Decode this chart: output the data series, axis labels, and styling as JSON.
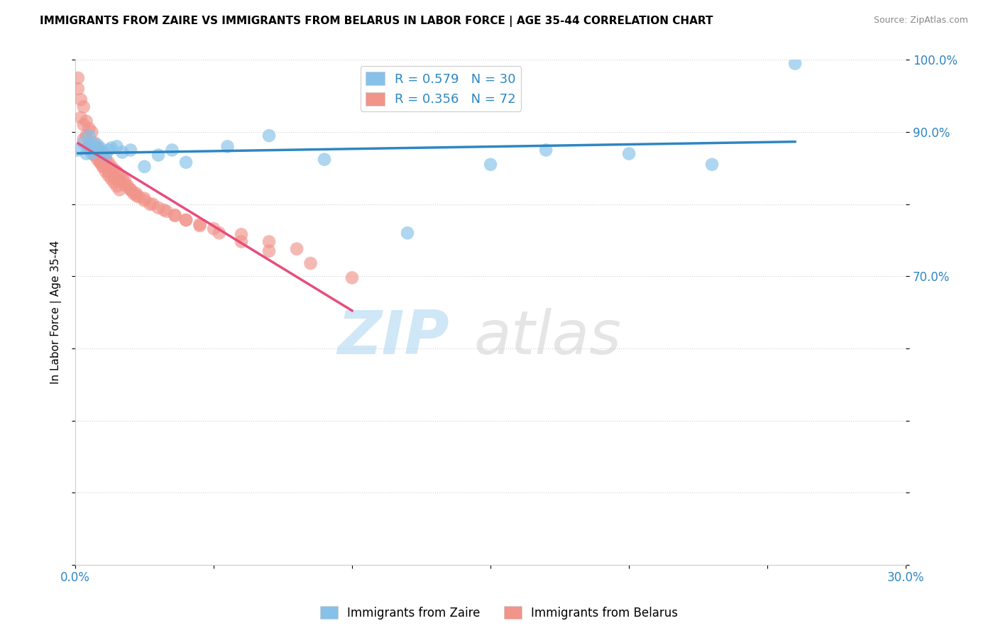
{
  "title": "IMMIGRANTS FROM ZAIRE VS IMMIGRANTS FROM BELARUS IN LABOR FORCE | AGE 35-44 CORRELATION CHART",
  "source": "Source: ZipAtlas.com",
  "ylabel": "In Labor Force | Age 35-44",
  "xlim": [
    0.0,
    0.3
  ],
  "ylim": [
    0.3,
    1.0
  ],
  "xtick_positions": [
    0.0,
    0.05,
    0.1,
    0.15,
    0.2,
    0.25,
    0.3
  ],
  "xticklabels": [
    "0.0%",
    "",
    "",
    "",
    "",
    "",
    "30.0%"
  ],
  "ytick_positions": [
    0.3,
    0.4,
    0.5,
    0.6,
    0.7,
    0.8,
    0.9,
    1.0
  ],
  "yticklabels": [
    "",
    "",
    "",
    "",
    "70.0%",
    "",
    "90.0%",
    "100.0%"
  ],
  "zaire_R": 0.579,
  "zaire_N": 30,
  "belarus_R": 0.356,
  "belarus_N": 72,
  "zaire_color": "#85c1e9",
  "belarus_color": "#f1948a",
  "zaire_line_color": "#2e86c1",
  "belarus_line_color": "#e74c7c",
  "watermark_zip": "ZIP",
  "watermark_atlas": "atlas",
  "legend_label_zaire": "Immigrants from Zaire",
  "legend_label_belarus": "Immigrants from Belarus",
  "zaire_x": [
    0.001,
    0.003,
    0.004,
    0.005,
    0.005,
    0.006,
    0.006,
    0.007,
    0.008,
    0.009,
    0.01,
    0.011,
    0.012,
    0.013,
    0.015,
    0.017,
    0.02,
    0.025,
    0.03,
    0.035,
    0.04,
    0.055,
    0.07,
    0.09,
    0.12,
    0.15,
    0.17,
    0.2,
    0.23,
    0.26
  ],
  "zaire_y": [
    0.875,
    0.885,
    0.87,
    0.88,
    0.895,
    0.87,
    0.885,
    0.875,
    0.882,
    0.878,
    0.872,
    0.868,
    0.875,
    0.878,
    0.88,
    0.872,
    0.875,
    0.852,
    0.868,
    0.875,
    0.858,
    0.88,
    0.895,
    0.862,
    0.76,
    0.855,
    0.875,
    0.87,
    0.855,
    0.995
  ],
  "belarus_x": [
    0.001,
    0.001,
    0.002,
    0.002,
    0.003,
    0.003,
    0.004,
    0.004,
    0.005,
    0.005,
    0.006,
    0.006,
    0.007,
    0.007,
    0.008,
    0.008,
    0.009,
    0.009,
    0.01,
    0.01,
    0.011,
    0.011,
    0.012,
    0.012,
    0.013,
    0.013,
    0.014,
    0.014,
    0.015,
    0.015,
    0.016,
    0.016,
    0.017,
    0.018,
    0.019,
    0.02,
    0.021,
    0.022,
    0.023,
    0.025,
    0.027,
    0.03,
    0.033,
    0.036,
    0.04,
    0.045,
    0.05,
    0.06,
    0.07,
    0.08,
    0.003,
    0.005,
    0.007,
    0.009,
    0.01,
    0.012,
    0.014,
    0.016,
    0.018,
    0.02,
    0.022,
    0.025,
    0.028,
    0.032,
    0.036,
    0.04,
    0.045,
    0.052,
    0.06,
    0.07,
    0.085,
    0.1
  ],
  "belarus_y": [
    0.975,
    0.96,
    0.945,
    0.92,
    0.935,
    0.91,
    0.915,
    0.895,
    0.905,
    0.882,
    0.9,
    0.875,
    0.885,
    0.868,
    0.878,
    0.862,
    0.872,
    0.858,
    0.868,
    0.852,
    0.862,
    0.845,
    0.858,
    0.84,
    0.852,
    0.835,
    0.848,
    0.83,
    0.845,
    0.825,
    0.84,
    0.82,
    0.835,
    0.832,
    0.825,
    0.82,
    0.815,
    0.812,
    0.81,
    0.805,
    0.8,
    0.795,
    0.79,
    0.785,
    0.778,
    0.772,
    0.766,
    0.758,
    0.748,
    0.738,
    0.89,
    0.878,
    0.868,
    0.858,
    0.852,
    0.845,
    0.838,
    0.832,
    0.826,
    0.82,
    0.815,
    0.808,
    0.8,
    0.792,
    0.784,
    0.778,
    0.77,
    0.76,
    0.748,
    0.735,
    0.718,
    0.698
  ],
  "zaire_line_x": [
    0.001,
    0.26
  ],
  "belarus_line_x": [
    0.001,
    0.1
  ]
}
